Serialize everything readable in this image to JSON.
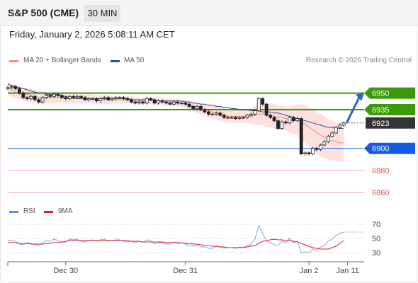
{
  "header": {
    "title": "S&P 500 (CME)",
    "timeframe": "30 MIN"
  },
  "datetime": "Friday, January 2, 2026 5:08:11 AM CET",
  "legend": {
    "ma20": {
      "label": "MA 20 + Bollinger Bands",
      "color": "#f28b82"
    },
    "ma50": {
      "label": "MA 50",
      "color": "#2c4f8c"
    },
    "rsi": {
      "label": "RSI",
      "color": "#5b8def"
    },
    "ma9": {
      "label": "9MA",
      "color": "#e02020"
    }
  },
  "credit": "Research © 2026 Trading Central",
  "chart_data": [
    {
      "type": "candlestick",
      "ylim": [
        6855,
        6960
      ],
      "levels": [
        {
          "value": 6950,
          "label": "6950",
          "color": "#3c9a09",
          "style": "resistance"
        },
        {
          "value": 6935,
          "label": "6935",
          "color": "#3c9a09",
          "style": "resistance"
        },
        {
          "value": 6923,
          "label": "6923",
          "color": "#333333",
          "style": "last-price"
        },
        {
          "value": 6900,
          "label": "6900",
          "color": "#1559e8",
          "style": "pivot"
        },
        {
          "value": 6880,
          "label": "6880",
          "color": "#e05555",
          "style": "support"
        },
        {
          "value": 6860,
          "label": "6860",
          "color": "#e05555",
          "style": "support"
        }
      ],
      "x_ticks": [
        "Dec 30",
        "Dec 31",
        "Jan 2",
        "Jan 11"
      ],
      "x_tick_index": [
        15,
        46,
        78,
        88
      ],
      "num_slots": 90,
      "closes": [
        6955,
        6956,
        6954,
        6950,
        6946,
        6945,
        6947,
        6944,
        6942,
        6946,
        6948,
        6947,
        6949,
        6948,
        6946,
        6945,
        6947,
        6946,
        6947,
        6946,
        6944,
        6945,
        6945,
        6943,
        6945,
        6946,
        6944,
        6945,
        6946,
        6946,
        6945,
        6944,
        6942,
        6941,
        6942,
        6941,
        6945,
        6944,
        6941,
        6943,
        6942,
        6941,
        6940,
        6942,
        6941,
        6941,
        6940,
        6938,
        6936,
        6938,
        6935,
        6933,
        6931,
        6931,
        6932,
        6930,
        6928,
        6928,
        6928,
        6927,
        6928,
        6928,
        6930,
        6931,
        6934,
        6945,
        6940,
        6930,
        6928,
        6925,
        6918,
        6924,
        6923,
        6928,
        6925,
        6927,
        6895,
        6896,
        6895,
        6900,
        6899,
        6903,
        6906,
        6911,
        6914,
        6919,
        6921,
        6923
      ],
      "ma20": [
        6955,
        6953,
        6951,
        6950,
        6949,
        6949,
        6948,
        6947,
        6946,
        6946,
        6946,
        6946,
        6946,
        6946,
        6946,
        6945,
        6945,
        6945,
        6945,
        6945,
        6945,
        6945,
        6945,
        6944,
        6944,
        6944,
        6944,
        6944,
        6944,
        6944,
        6944,
        6944,
        6944,
        6943,
        6943,
        6943,
        6943,
        6943,
        6943,
        6942,
        6942,
        6942,
        6942,
        6942,
        6941,
        6941,
        6940,
        6939,
        6938,
        6937,
        6936,
        6935,
        6934,
        6933,
        6932,
        6931,
        6930,
        6929,
        6929,
        6929,
        6929,
        6929,
        6929,
        6929,
        6930,
        6931,
        6931,
        6930,
        6930,
        6929,
        6928,
        6928,
        6927,
        6926,
        6926,
        6926,
        6924,
        6922,
        6919,
        6917,
        6914,
        6912,
        6910,
        6908,
        6907,
        6906,
        6905,
        6905
      ],
      "ma50": [
        6958,
        6957,
        6956,
        6955,
        6954,
        6953,
        6952,
        6951,
        6950,
        6950,
        6949,
        6949,
        6948,
        6948,
        6947,
        6947,
        6946,
        6946,
        6945,
        6945,
        6945,
        6945,
        6945,
        6945,
        6945,
        6945,
        6945,
        6945,
        6945,
        6945,
        6945,
        6945,
        6944,
        6944,
        6944,
        6944,
        6944,
        6944,
        6944,
        6943,
        6943,
        6943,
        6943,
        6943,
        6943,
        6943,
        6942,
        6942,
        6941,
        6941,
        6940,
        6940,
        6939,
        6939,
        6938,
        6938,
        6937,
        6937,
        6936,
        6936,
        6935,
        6935,
        6935,
        6934,
        6934,
        6934,
        6933,
        6933,
        6933,
        6932,
        6932,
        6931,
        6930,
        6929,
        6928,
        6927,
        6926,
        6925,
        6924,
        6923,
        6922,
        6921,
        6920,
        6919,
        6919,
        6918,
        6918,
        6918
      ],
      "bb_half_width": [
        6,
        6,
        6,
        6,
        6,
        6,
        6,
        6,
        6,
        6,
        5,
        5,
        5,
        5,
        4,
        4,
        4,
        4,
        4,
        4,
        4,
        4,
        4,
        4,
        4,
        4,
        4,
        3,
        3,
        3,
        3,
        3,
        3,
        3,
        3,
        3,
        3,
        3,
        3,
        3,
        3,
        3,
        3,
        3,
        3,
        3,
        4,
        4,
        4,
        5,
        5,
        5,
        6,
        6,
        6,
        6,
        6,
        6,
        6,
        6,
        6,
        6,
        6,
        7,
        8,
        10,
        10,
        11,
        11,
        11,
        11,
        11,
        11,
        12,
        13,
        14,
        16,
        17,
        18,
        19,
        19,
        19,
        19,
        18,
        18,
        17,
        17,
        17
      ],
      "projection": {
        "from": 6923,
        "to": 6950
      }
    },
    {
      "type": "line",
      "name": "RSI",
      "ylim": [
        20,
        80
      ],
      "y_ticks": [
        30,
        50,
        70
      ],
      "rsi": [
        47,
        47,
        46,
        42,
        41,
        44,
        43,
        41,
        40,
        44,
        47,
        46,
        49,
        47,
        45,
        45,
        49,
        48,
        49,
        46,
        45,
        47,
        48,
        46,
        48,
        49,
        46,
        47,
        48,
        48,
        46,
        45,
        46,
        44,
        46,
        44,
        48,
        47,
        42,
        44,
        44,
        42,
        42,
        45,
        43,
        44,
        42,
        40,
        39,
        41,
        38,
        38,
        36,
        36,
        39,
        38,
        36,
        37,
        37,
        36,
        38,
        37,
        40,
        42,
        49,
        68,
        58,
        46,
        44,
        41,
        40,
        46,
        44,
        50,
        44,
        46,
        30,
        31,
        30,
        35,
        33,
        38,
        40,
        46,
        49,
        54,
        57,
        59
      ],
      "ma9": [
        44,
        44,
        44,
        43,
        43,
        43,
        42,
        42,
        42,
        42,
        43,
        43,
        44,
        44,
        45,
        46,
        47,
        47,
        47,
        47,
        47,
        47,
        47,
        47,
        47,
        47,
        47,
        47,
        47,
        47,
        47,
        47,
        46,
        46,
        46,
        45,
        45,
        45,
        45,
        45,
        45,
        44,
        44,
        44,
        44,
        44,
        43,
        43,
        42,
        42,
        41,
        40,
        40,
        39,
        39,
        38,
        38,
        37,
        37,
        37,
        37,
        37,
        38,
        39,
        40,
        43,
        46,
        47,
        48,
        49,
        48,
        48,
        47,
        47,
        46,
        45,
        43,
        41,
        39,
        37,
        36,
        35,
        35,
        35,
        37,
        39,
        43,
        47
      ]
    }
  ]
}
